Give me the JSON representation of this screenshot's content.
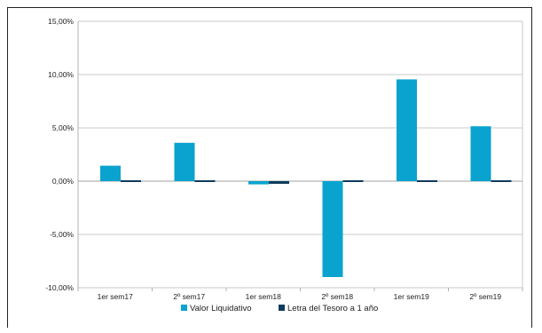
{
  "chart_data": {
    "type": "bar",
    "categories": [
      "1er sem17",
      "2º sem17",
      "1er sem18",
      "2º sem18",
      "1er sem19",
      "2º sem19"
    ],
    "series": [
      {
        "name": "Valor Liquidativo",
        "color": "#0aa3cf",
        "values": [
          1.45,
          3.6,
          -0.3,
          -9.0,
          9.55,
          5.15
        ]
      },
      {
        "name": "Letra del Tesoro a 1 año",
        "color": "#0e3a5c",
        "values": [
          -0.1,
          0.1,
          -0.25,
          -0.1,
          0.0,
          0.1
        ]
      }
    ],
    "ylim": [
      -10,
      15
    ],
    "yticks": [
      -10,
      -5,
      0,
      5,
      10,
      15
    ],
    "ytick_labels": [
      "-10,00%",
      "-5,00%",
      "0,00%",
      "5,00%",
      "10,00%",
      "15,00%"
    ],
    "grid": true,
    "legend": "bottom",
    "title": "",
    "xlabel": "",
    "ylabel": ""
  }
}
